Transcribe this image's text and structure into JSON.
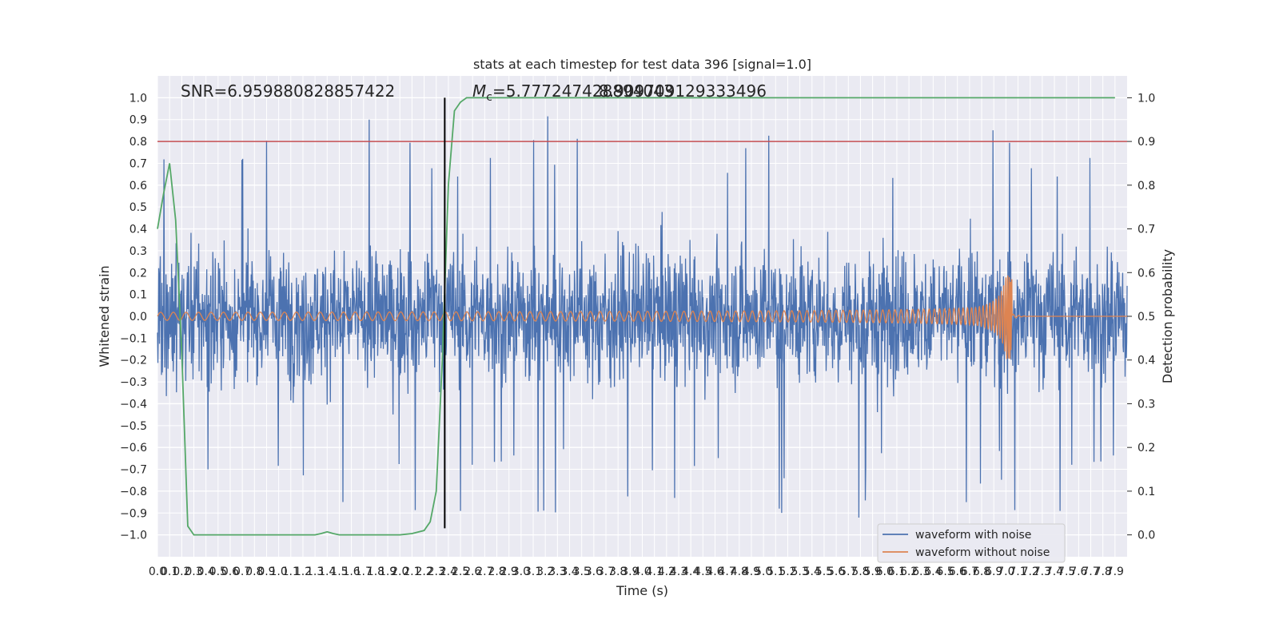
{
  "chart_data": {
    "type": "line",
    "title": "stats at each timestep for test data 396 [signal=1.0]",
    "xlabel": "Time (s)",
    "ylabel": "Whitened strain",
    "ylabel_right": "Detection probability",
    "xlim": [
      0.0,
      8.0
    ],
    "ylim": [
      -1.1,
      1.1
    ],
    "ylim_right": [
      -0.05,
      1.05
    ],
    "x_ticks": [
      "0.0",
      "0.1",
      "0.2",
      "0.3",
      "0.4",
      "0.5",
      "0.6",
      "0.7",
      "0.8",
      "0.9",
      "1.0",
      "1.1",
      "1.2",
      "1.3",
      "1.4",
      "1.5",
      "1.6",
      "1.7",
      "1.8",
      "1.9",
      "2.0",
      "2.1",
      "2.2",
      "2.3",
      "2.4",
      "2.5",
      "2.6",
      "2.7",
      "2.8",
      "2.9",
      "3.0",
      "3.1",
      "3.2",
      "3.3",
      "3.4",
      "3.5",
      "3.6",
      "3.7",
      "3.8",
      "3.9",
      "4.0",
      "4.1",
      "4.2",
      "4.3",
      "4.4",
      "4.5",
      "4.6",
      "4.7",
      "4.8",
      "4.9",
      "5.0",
      "5.1",
      "5.2",
      "5.3",
      "5.4",
      "5.5",
      "5.6",
      "5.7",
      "5.8",
      "5.9",
      "6.0",
      "6.1",
      "6.2",
      "6.3",
      "6.4",
      "6.5",
      "6.6",
      "6.7",
      "6.8",
      "6.9",
      "7.0",
      "7.1",
      "7.2",
      "7.3",
      "7.4",
      "7.5",
      "7.6",
      "7.7",
      "7.8",
      "7.9"
    ],
    "y_ticks": [
      "1.0",
      "0.9",
      "0.8",
      "0.7",
      "0.6",
      "0.5",
      "0.4",
      "0.3",
      "0.2",
      "0.1",
      "0.0",
      "−0.1",
      "−0.2",
      "−0.3",
      "−0.4",
      "−0.5",
      "−0.6",
      "−0.7",
      "−0.8",
      "−0.9",
      "−1.0"
    ],
    "y_tick_values": [
      1.0,
      0.9,
      0.8,
      0.7,
      0.6,
      0.5,
      0.4,
      0.3,
      0.2,
      0.1,
      0.0,
      -0.1,
      -0.2,
      -0.3,
      -0.4,
      -0.5,
      -0.6,
      -0.7,
      -0.8,
      -0.9,
      -1.0
    ],
    "y_right_ticks": [
      "1.0",
      "0.9",
      "0.8",
      "0.7",
      "0.6",
      "0.5",
      "0.4",
      "0.3",
      "0.2",
      "0.1",
      "0.0"
    ],
    "y_right_tick_values": [
      1.0,
      0.9,
      0.8,
      0.7,
      0.6,
      0.5,
      0.4,
      0.3,
      0.2,
      0.1,
      0.0
    ],
    "annotations": {
      "snr": "SNR=6.959880828857422",
      "mc_symbol": "M",
      "mc_sub": "c",
      "mc_value": "=5.777247428894043",
      "mc_overlap": "8.909709129333496"
    },
    "legend": {
      "position": "lower-right",
      "entries": [
        "waveform with noise",
        "waveform without noise"
      ]
    },
    "colors": {
      "noise": "#4c72b0",
      "clean": "#dd8452",
      "probability": "#55a868",
      "threshold": "#c44e52",
      "marker": "#000000",
      "background": "#eaeaf2",
      "grid": "#ffffff"
    },
    "threshold_probability": 0.9,
    "marker_time": 2.37,
    "merger_time": 7.05,
    "clean_waveform_peak": 0.2,
    "noise_envelope": 0.55,
    "probability_series": {
      "x": [
        0.0,
        0.05,
        0.1,
        0.15,
        0.2,
        0.25,
        0.3,
        0.4,
        0.6,
        0.8,
        1.0,
        1.2,
        1.3,
        1.35,
        1.4,
        1.45,
        1.5,
        1.6,
        1.8,
        2.0,
        2.1,
        2.2,
        2.25,
        2.3,
        2.35,
        2.4,
        2.45,
        2.5,
        2.55,
        2.6,
        3.0,
        4.0,
        5.0,
        6.0,
        7.0,
        7.9
      ],
      "y": [
        0.7,
        0.78,
        0.85,
        0.72,
        0.42,
        0.02,
        0.0,
        0.0,
        0.0,
        0.0,
        0.0,
        0.0,
        0.0,
        0.003,
        0.007,
        0.003,
        0.0,
        0.0,
        0.0,
        0.0,
        0.003,
        0.01,
        0.03,
        0.1,
        0.4,
        0.8,
        0.97,
        0.99,
        1.0,
        1.0,
        1.0,
        1.0,
        1.0,
        1.0,
        1.0,
        1.0
      ]
    }
  }
}
